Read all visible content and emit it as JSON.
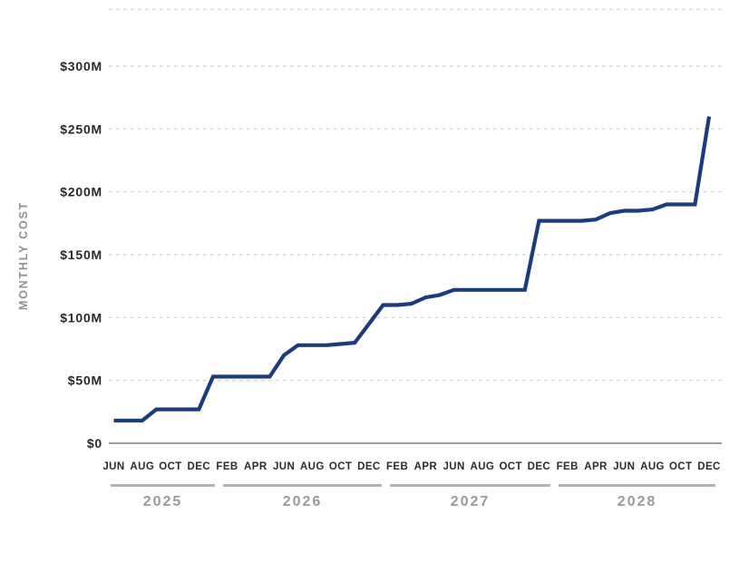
{
  "chart_data": {
    "type": "line",
    "title": "",
    "ylabel": "MONTHLY COST",
    "xlabel": "",
    "ylim": [
      0,
      300
    ],
    "grid": "dashed-horizontal",
    "legend": "none",
    "colors": {
      "line": "#1a3c7d",
      "gridline": "#d2d2d2",
      "baseline": "#9b9b9b",
      "year_bar": "#b2b4b7",
      "year_text": "#97999c",
      "tick_text": "#2a2b2d",
      "axis_title_text": "#8f9194"
    },
    "y_ticks": [
      {
        "value": 345,
        "label": ""
      },
      {
        "value": 300,
        "label": "$300M"
      },
      {
        "value": 250,
        "label": "$250M"
      },
      {
        "value": 200,
        "label": "$200M"
      },
      {
        "value": 150,
        "label": "$150M"
      },
      {
        "value": 100,
        "label": "$100M"
      },
      {
        "value": 50,
        "label": "$50M"
      },
      {
        "value": 0,
        "label": "$0"
      }
    ],
    "x_tick_interval_months": 2,
    "years": [
      {
        "label": "2025",
        "months_shown": [
          "JUN",
          "AUG",
          "OCT",
          "DEC"
        ]
      },
      {
        "label": "2026",
        "months_shown": [
          "FEB",
          "APR",
          "JUN",
          "AUG",
          "OCT",
          "DEC"
        ]
      },
      {
        "label": "2027",
        "months_shown": [
          "FEB",
          "APR",
          "JUN",
          "AUG",
          "OCT",
          "DEC"
        ]
      },
      {
        "label": "2028",
        "months_shown": [
          "FEB",
          "APR",
          "JUN",
          "AUG",
          "OCT",
          "DEC"
        ]
      }
    ],
    "points": [
      {
        "month": "JUN",
        "year": 2025,
        "value": 18
      },
      {
        "month": "JUL",
        "year": 2025,
        "value": 18
      },
      {
        "month": "AUG",
        "year": 2025,
        "value": 18
      },
      {
        "month": "SEP",
        "year": 2025,
        "value": 27
      },
      {
        "month": "OCT",
        "year": 2025,
        "value": 27
      },
      {
        "month": "NOV",
        "year": 2025,
        "value": 27
      },
      {
        "month": "DEC",
        "year": 2025,
        "value": 27
      },
      {
        "month": "JAN",
        "year": 2026,
        "value": 53
      },
      {
        "month": "FEB",
        "year": 2026,
        "value": 53
      },
      {
        "month": "MAR",
        "year": 2026,
        "value": 53
      },
      {
        "month": "APR",
        "year": 2026,
        "value": 53
      },
      {
        "month": "MAY",
        "year": 2026,
        "value": 53
      },
      {
        "month": "JUN",
        "year": 2026,
        "value": 70
      },
      {
        "month": "JUL",
        "year": 2026,
        "value": 78
      },
      {
        "month": "AUG",
        "year": 2026,
        "value": 78
      },
      {
        "month": "SEP",
        "year": 2026,
        "value": 78
      },
      {
        "month": "OCT",
        "year": 2026,
        "value": 79
      },
      {
        "month": "NOV",
        "year": 2026,
        "value": 80
      },
      {
        "month": "DEC",
        "year": 2026,
        "value": 95
      },
      {
        "month": "JAN",
        "year": 2027,
        "value": 110
      },
      {
        "month": "FEB",
        "year": 2027,
        "value": 110
      },
      {
        "month": "MAR",
        "year": 2027,
        "value": 111
      },
      {
        "month": "APR",
        "year": 2027,
        "value": 116
      },
      {
        "month": "MAY",
        "year": 2027,
        "value": 118
      },
      {
        "month": "JUN",
        "year": 2027,
        "value": 122
      },
      {
        "month": "JUL",
        "year": 2027,
        "value": 122
      },
      {
        "month": "AUG",
        "year": 2027,
        "value": 122
      },
      {
        "month": "SEP",
        "year": 2027,
        "value": 122
      },
      {
        "month": "OCT",
        "year": 2027,
        "value": 122
      },
      {
        "month": "NOV",
        "year": 2027,
        "value": 122
      },
      {
        "month": "DEC",
        "year": 2027,
        "value": 177
      },
      {
        "month": "JAN",
        "year": 2028,
        "value": 177
      },
      {
        "month": "FEB",
        "year": 2028,
        "value": 177
      },
      {
        "month": "MAR",
        "year": 2028,
        "value": 177
      },
      {
        "month": "APR",
        "year": 2028,
        "value": 178
      },
      {
        "month": "MAY",
        "year": 2028,
        "value": 183
      },
      {
        "month": "JUN",
        "year": 2028,
        "value": 185
      },
      {
        "month": "JUL",
        "year": 2028,
        "value": 185
      },
      {
        "month": "AUG",
        "year": 2028,
        "value": 186
      },
      {
        "month": "SEP",
        "year": 2028,
        "value": 190
      },
      {
        "month": "OCT",
        "year": 2028,
        "value": 190
      },
      {
        "month": "NOV",
        "year": 2028,
        "value": 190
      },
      {
        "month": "DEC",
        "year": 2028,
        "value": 260
      }
    ]
  }
}
